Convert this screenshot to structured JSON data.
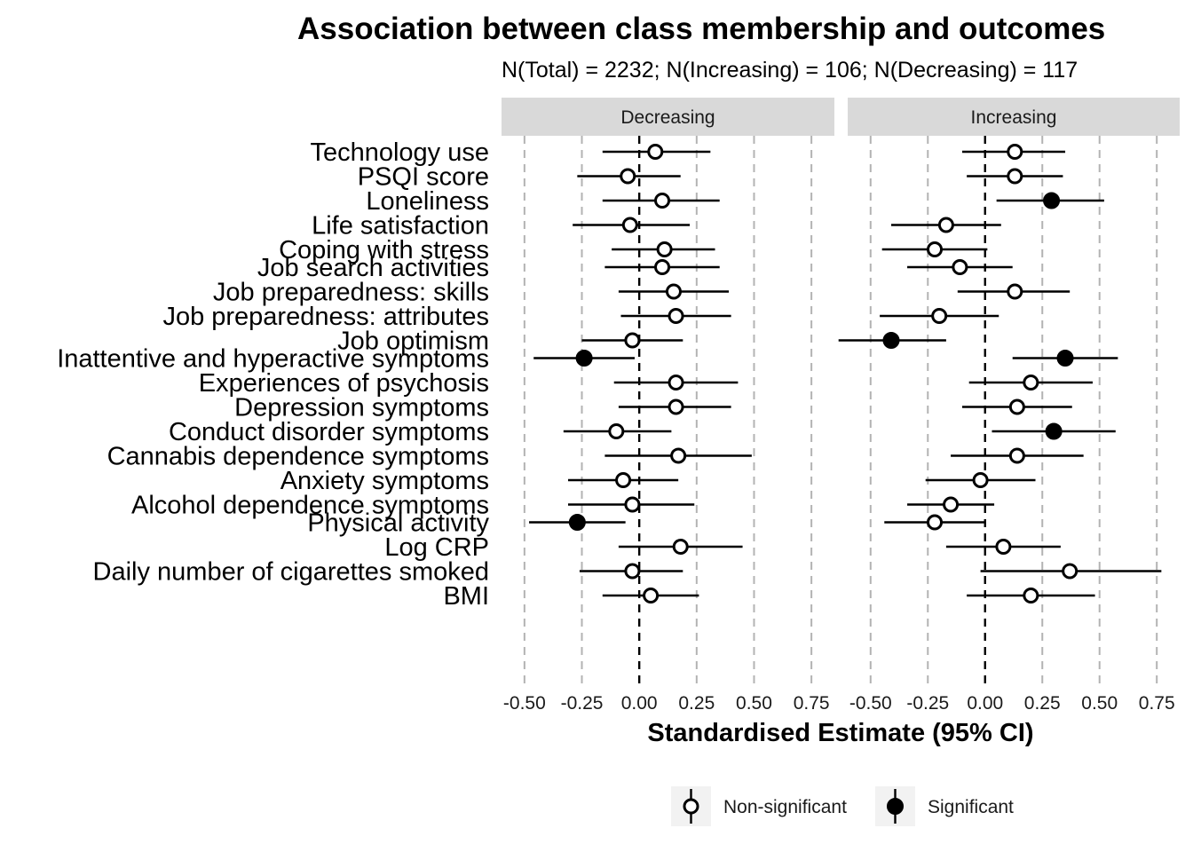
{
  "chart_data": {
    "type": "forest",
    "title": "Association between class membership and outcomes",
    "subtitle": "N(Total) = 2232; N(Increasing) = 106; N(Decreasing) = 117",
    "xlabel": "Standardised Estimate (95% CI)",
    "xlim": [
      -0.6,
      0.85
    ],
    "x_ticks": [
      "-0.50",
      "-0.25",
      "0.00",
      "0.25",
      "0.50",
      "0.75"
    ],
    "x_tick_values": [
      -0.5,
      -0.25,
      0,
      0.25,
      0.5,
      0.75
    ],
    "reference_line": 0,
    "grid": "vertical dashed",
    "legend": {
      "position": "bottom",
      "items": [
        {
          "label": "Non-significant",
          "marker": "open-circle"
        },
        {
          "label": "Significant",
          "marker": "filled-circle"
        }
      ]
    },
    "groups": [
      [
        "Technology use",
        "PSQI score",
        "Loneliness",
        "Life satisfaction",
        "Coping with stress"
      ],
      [
        "Job search activities",
        "Job preparedness: skills",
        "Job preparedness: attributes",
        "Job optimism"
      ],
      [
        "Inattentive and hyperactive symptoms",
        "Experiences of psychosis",
        "Depression symptoms",
        "Conduct disorder symptoms",
        "Cannabis dependence symptoms",
        "Anxiety symptoms",
        "Alcohol dependence symptoms"
      ],
      [
        "Physical activity",
        "Log CRP",
        "Daily number of cigarettes smoked",
        "BMI"
      ]
    ],
    "panels": [
      {
        "name": "Decreasing",
        "rows": [
          {
            "label": "Technology use",
            "est": 0.07,
            "lo": -0.16,
            "hi": 0.31,
            "sig": false
          },
          {
            "label": "PSQI score",
            "est": -0.05,
            "lo": -0.27,
            "hi": 0.18,
            "sig": false
          },
          {
            "label": "Loneliness",
            "est": 0.1,
            "lo": -0.16,
            "hi": 0.35,
            "sig": false
          },
          {
            "label": "Life satisfaction",
            "est": -0.04,
            "lo": -0.29,
            "hi": 0.22,
            "sig": false
          },
          {
            "label": "Coping with stress",
            "est": 0.11,
            "lo": -0.12,
            "hi": 0.33,
            "sig": false
          },
          {
            "label": "Job search activities",
            "est": 0.1,
            "lo": -0.15,
            "hi": 0.35,
            "sig": false
          },
          {
            "label": "Job preparedness: skills",
            "est": 0.15,
            "lo": -0.09,
            "hi": 0.39,
            "sig": false
          },
          {
            "label": "Job preparedness: attributes",
            "est": 0.16,
            "lo": -0.08,
            "hi": 0.4,
            "sig": false
          },
          {
            "label": "Job optimism",
            "est": -0.03,
            "lo": -0.25,
            "hi": 0.19,
            "sig": false
          },
          {
            "label": "Inattentive and hyperactive symptoms",
            "est": -0.24,
            "lo": -0.46,
            "hi": -0.02,
            "sig": true
          },
          {
            "label": "Experiences of psychosis",
            "est": 0.16,
            "lo": -0.11,
            "hi": 0.43,
            "sig": false
          },
          {
            "label": "Depression symptoms",
            "est": 0.16,
            "lo": -0.09,
            "hi": 0.4,
            "sig": false
          },
          {
            "label": "Conduct disorder symptoms",
            "est": -0.1,
            "lo": -0.33,
            "hi": 0.14,
            "sig": false
          },
          {
            "label": "Cannabis dependence symptoms",
            "est": 0.17,
            "lo": -0.15,
            "hi": 0.49,
            "sig": false
          },
          {
            "label": "Anxiety symptoms",
            "est": -0.07,
            "lo": -0.31,
            "hi": 0.17,
            "sig": false
          },
          {
            "label": "Alcohol dependence symptoms",
            "est": -0.03,
            "lo": -0.31,
            "hi": 0.24,
            "sig": false
          },
          {
            "label": "Physical activity",
            "est": -0.27,
            "lo": -0.48,
            "hi": -0.06,
            "sig": true
          },
          {
            "label": "Log CRP",
            "est": 0.18,
            "lo": -0.09,
            "hi": 0.45,
            "sig": false
          },
          {
            "label": "Daily number of cigarettes smoked",
            "est": -0.03,
            "lo": -0.26,
            "hi": 0.19,
            "sig": false
          },
          {
            "label": "BMI",
            "est": 0.05,
            "lo": -0.16,
            "hi": 0.26,
            "sig": false
          }
        ]
      },
      {
        "name": "Increasing",
        "rows": [
          {
            "label": "Technology use",
            "est": 0.13,
            "lo": -0.1,
            "hi": 0.35,
            "sig": false
          },
          {
            "label": "PSQI score",
            "est": 0.13,
            "lo": -0.08,
            "hi": 0.34,
            "sig": false
          },
          {
            "label": "Loneliness",
            "est": 0.29,
            "lo": 0.05,
            "hi": 0.52,
            "sig": true
          },
          {
            "label": "Life satisfaction",
            "est": -0.17,
            "lo": -0.41,
            "hi": 0.07,
            "sig": false
          },
          {
            "label": "Coping with stress",
            "est": -0.22,
            "lo": -0.45,
            "hi": 0.01,
            "sig": false
          },
          {
            "label": "Job search activities",
            "est": -0.11,
            "lo": -0.34,
            "hi": 0.12,
            "sig": false
          },
          {
            "label": "Job preparedness: skills",
            "est": 0.13,
            "lo": -0.12,
            "hi": 0.37,
            "sig": false
          },
          {
            "label": "Job preparedness: attributes",
            "est": -0.2,
            "lo": -0.46,
            "hi": 0.06,
            "sig": false
          },
          {
            "label": "Job optimism",
            "est": -0.41,
            "lo": -0.64,
            "hi": -0.17,
            "sig": true
          },
          {
            "label": "Inattentive and hyperactive symptoms",
            "est": 0.35,
            "lo": 0.12,
            "hi": 0.58,
            "sig": true
          },
          {
            "label": "Experiences of psychosis",
            "est": 0.2,
            "lo": -0.07,
            "hi": 0.47,
            "sig": false
          },
          {
            "label": "Depression symptoms",
            "est": 0.14,
            "lo": -0.1,
            "hi": 0.38,
            "sig": false
          },
          {
            "label": "Conduct disorder symptoms",
            "est": 0.3,
            "lo": 0.03,
            "hi": 0.57,
            "sig": true
          },
          {
            "label": "Cannabis dependence symptoms",
            "est": 0.14,
            "lo": -0.15,
            "hi": 0.43,
            "sig": false
          },
          {
            "label": "Anxiety symptoms",
            "est": -0.02,
            "lo": -0.26,
            "hi": 0.22,
            "sig": false
          },
          {
            "label": "Alcohol dependence symptoms",
            "est": -0.15,
            "lo": -0.34,
            "hi": 0.04,
            "sig": false
          },
          {
            "label": "Physical activity",
            "est": -0.22,
            "lo": -0.44,
            "hi": 0.0,
            "sig": false
          },
          {
            "label": "Log CRP",
            "est": 0.08,
            "lo": -0.17,
            "hi": 0.33,
            "sig": false
          },
          {
            "label": "Daily number of cigarettes smoked",
            "est": 0.37,
            "lo": -0.02,
            "hi": 0.77,
            "sig": false
          },
          {
            "label": "BMI",
            "est": 0.2,
            "lo": -0.08,
            "hi": 0.48,
            "sig": false
          }
        ]
      }
    ]
  }
}
